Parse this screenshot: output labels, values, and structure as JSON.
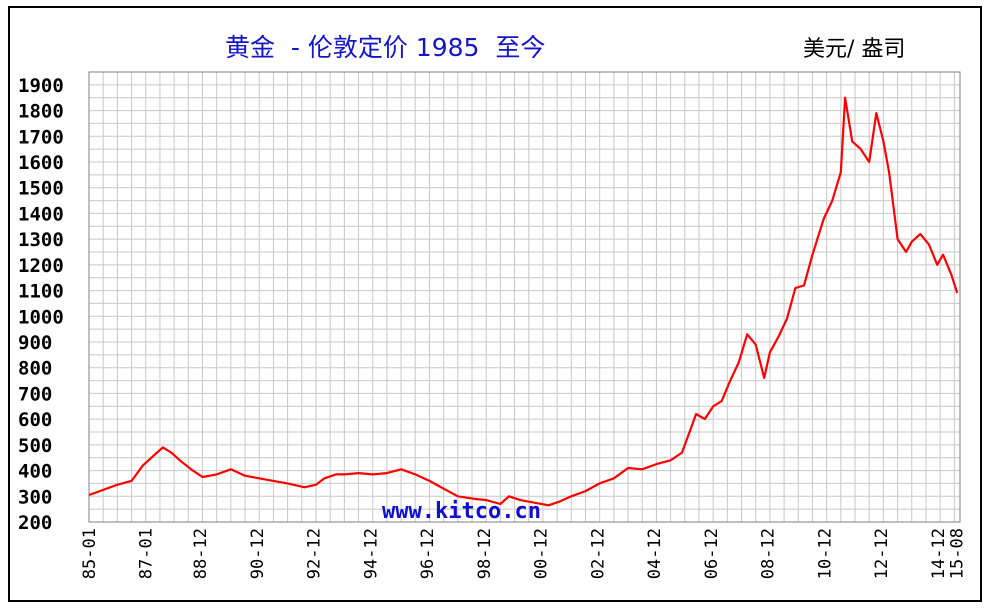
{
  "title": "黄金  - 伦敦定价 1985  至今",
  "unit_label": "美元/ 盎司",
  "watermark": "www.kitco.cn",
  "colors": {
    "line": "#ff0000",
    "grid": "#c8c8c8",
    "title": "#1515c8",
    "watermark": "#1010cc"
  },
  "chart_data": {
    "type": "line",
    "title": "黄金  - 伦敦定价 1985  至今",
    "ylabel": "美元/ 盎司",
    "xlabel": "",
    "ylim": [
      200,
      1950
    ],
    "xlim": [
      1985.0,
      2015.7
    ],
    "grid": true,
    "yticks": [
      200,
      300,
      400,
      500,
      600,
      700,
      800,
      900,
      1000,
      1100,
      1200,
      1300,
      1400,
      1500,
      1600,
      1700,
      1800,
      1900
    ],
    "xticks": [
      {
        "label": "85-01",
        "x": 1985.0
      },
      {
        "label": "87-01",
        "x": 1987.0
      },
      {
        "label": "88-12",
        "x": 1988.92
      },
      {
        "label": "90-12",
        "x": 1990.92
      },
      {
        "label": "92-12",
        "x": 1992.92
      },
      {
        "label": "94-12",
        "x": 1994.92
      },
      {
        "label": "96-12",
        "x": 1996.92
      },
      {
        "label": "98-12",
        "x": 1998.92
      },
      {
        "label": "00-12",
        "x": 2000.92
      },
      {
        "label": "02-12",
        "x": 2002.92
      },
      {
        "label": "04-12",
        "x": 2004.92
      },
      {
        "label": "06-12",
        "x": 2006.92
      },
      {
        "label": "08-12",
        "x": 2008.92
      },
      {
        "label": "10-12",
        "x": 2010.92
      },
      {
        "label": "12-12",
        "x": 2012.92
      },
      {
        "label": "14-12",
        "x": 2014.92
      },
      {
        "label": "15-08",
        "x": 2015.58
      }
    ],
    "series": [
      {
        "color": "#ff0000",
        "x": [
          1985.0,
          1985.5,
          1986.0,
          1986.5,
          1986.9,
          1987.3,
          1987.6,
          1987.9,
          1988.2,
          1988.6,
          1989.0,
          1989.5,
          1990.0,
          1990.5,
          1991.0,
          1991.5,
          1992.0,
          1992.6,
          1993.0,
          1993.3,
          1993.7,
          1994.0,
          1994.5,
          1995.0,
          1995.5,
          1996.0,
          1996.5,
          1997.0,
          1997.5,
          1998.0,
          1998.6,
          1999.0,
          1999.5,
          1999.8,
          2000.2,
          2000.7,
          2001.2,
          2001.6,
          2002.0,
          2002.5,
          2003.0,
          2003.5,
          2004.0,
          2004.5,
          2005.0,
          2005.5,
          2005.9,
          2006.2,
          2006.4,
          2006.7,
          2007.0,
          2007.3,
          2007.6,
          2007.9,
          2008.2,
          2008.5,
          2008.8,
          2009.0,
          2009.3,
          2009.6,
          2009.9,
          2010.2,
          2010.5,
          2010.9,
          2011.2,
          2011.5,
          2011.65,
          2011.9,
          2012.2,
          2012.5,
          2012.75,
          2013.0,
          2013.2,
          2013.5,
          2013.8,
          2014.0,
          2014.3,
          2014.6,
          2014.9,
          2015.1,
          2015.4,
          2015.6
        ],
        "y": [
          305,
          325,
          345,
          360,
          420,
          460,
          490,
          470,
          440,
          405,
          375,
          385,
          405,
          380,
          370,
          360,
          350,
          335,
          345,
          370,
          385,
          385,
          390,
          385,
          390,
          405,
          385,
          360,
          330,
          300,
          290,
          285,
          270,
          300,
          285,
          275,
          265,
          280,
          300,
          320,
          350,
          370,
          410,
          405,
          425,
          440,
          470,
          560,
          620,
          600,
          650,
          670,
          750,
          820,
          930,
          890,
          760,
          860,
          920,
          990,
          1110,
          1120,
          1240,
          1380,
          1450,
          1560,
          1850,
          1680,
          1650,
          1600,
          1790,
          1680,
          1560,
          1300,
          1250,
          1290,
          1320,
          1280,
          1200,
          1240,
          1160,
          1090
        ]
      }
    ]
  }
}
